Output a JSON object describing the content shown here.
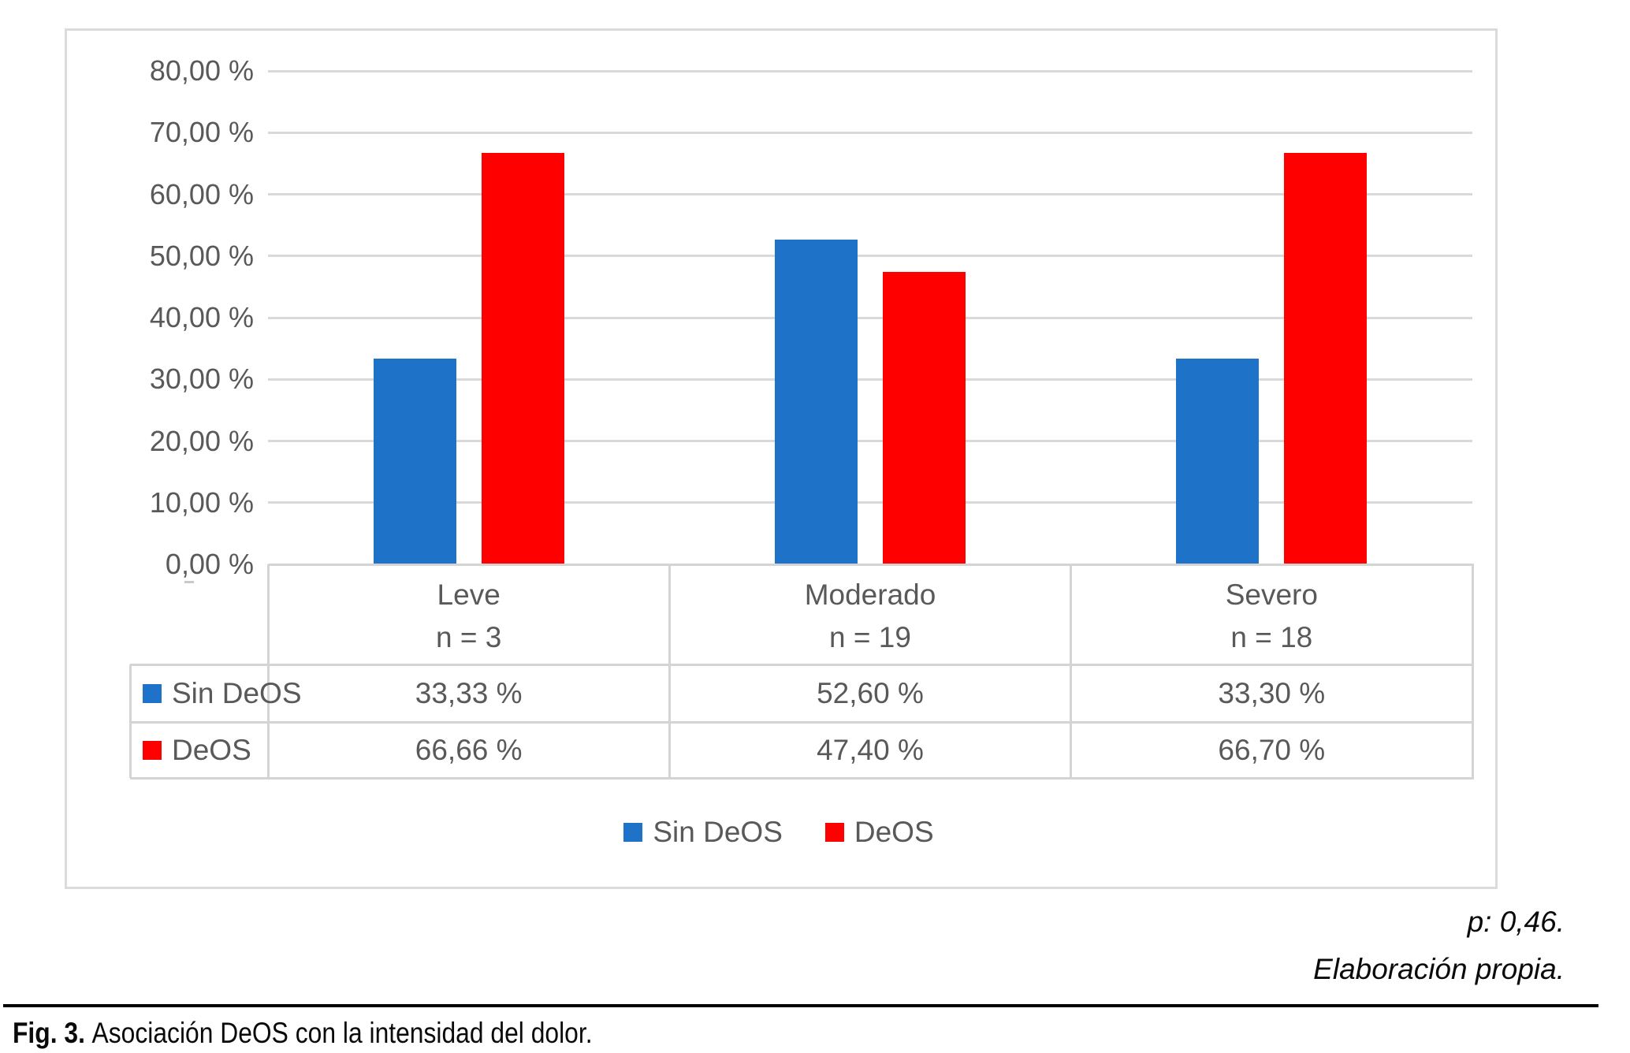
{
  "chart_data": {
    "type": "bar",
    "title": "",
    "categories": [
      "Leve",
      "Moderado",
      "Severo"
    ],
    "category_sublabels": [
      "n = 3",
      "n = 19",
      "n = 18"
    ],
    "series": [
      {
        "name": "Sin DeOS",
        "color": "#1e73c8",
        "values": [
          33.33,
          52.6,
          33.3
        ],
        "display_values": [
          "33,33 %",
          "52,60 %",
          "33,30 %"
        ]
      },
      {
        "name": "DeOS",
        "color": "#ff0000",
        "values": [
          66.66,
          47.4,
          66.7
        ],
        "display_values": [
          "66,66 %",
          "47,40 %",
          "66,70 %"
        ]
      }
    ],
    "ylim": [
      0,
      80
    ],
    "ytick_step": 10,
    "ytick_labels_top_down": [
      "80,00 %",
      "70,00 %",
      "60,00 %",
      "50,00 %",
      "40,00 %",
      "30,00 %",
      "20,00 %",
      "10,00 %",
      "0,00 %"
    ],
    "grid": true,
    "legend_position": "bottom",
    "data_table_shown": true
  },
  "colors": {
    "grid": "#d9d9d9",
    "frame_border": "#dbdbdb",
    "table_border": "#d4d4d4",
    "chart_text": "#595959",
    "caption_text": "#0a0a0a"
  },
  "captions": {
    "p_value": "p: 0,46.",
    "source": "Elaboración propia.",
    "figure_label": "Fig. 3.",
    "figure_title": "Asociación DeOS con la intensidad del dolor."
  }
}
